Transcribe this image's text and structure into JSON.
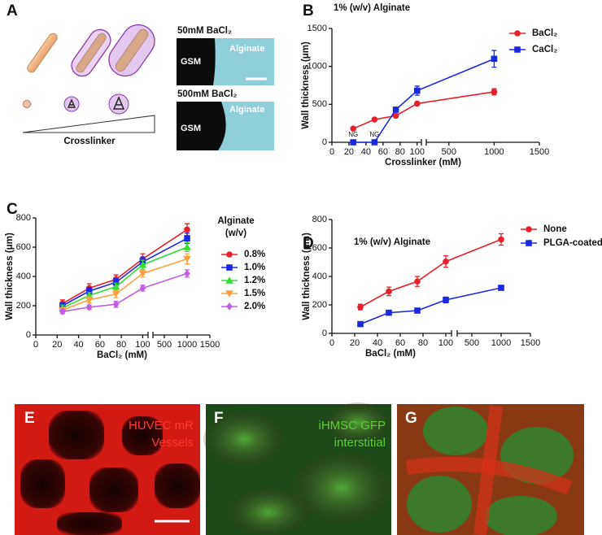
{
  "panels": {
    "A": {
      "label": "A",
      "images": [
        {
          "title": "50mM BaCl₂",
          "left": "GSM",
          "right": "Alginate"
        },
        {
          "title": "500mM BaCl₂",
          "left": "GSM",
          "right": "Alginate"
        }
      ],
      "gradient_label": "Crosslinker"
    },
    "E": {
      "label": "E",
      "text": [
        "HUVEC mR",
        "Vessels"
      ]
    },
    "F": {
      "label": "F",
      "text": [
        "iHMSC GFP",
        "interstitial"
      ]
    },
    "G": {
      "label": "G"
    }
  },
  "chart_data": [
    {
      "type": "line",
      "panel_label": "B",
      "title": "1% (w/v) Alginate",
      "x_label": "Crosslinker (mM)",
      "y_label": "Wall thickness (μm)",
      "x": [
        25,
        50,
        75,
        100,
        1000
      ],
      "xlim": [
        0,
        1500
      ],
      "xbreak": [
        105,
        250
      ],
      "xticks": [
        0,
        20,
        40,
        60,
        80,
        100,
        500,
        1000,
        1500
      ],
      "ylim": [
        0,
        1500
      ],
      "yticks": [
        0,
        500,
        1000,
        1500
      ],
      "series": [
        {
          "name": "BaCl₂",
          "color": "#e8202a",
          "marker": "circle",
          "values": [
            180,
            300,
            350,
            510,
            665
          ],
          "errors": [
            10,
            10,
            15,
            15,
            40
          ]
        },
        {
          "name": "CaCl₂",
          "color": "#1a28e0",
          "marker": "square",
          "values": [
            0,
            0,
            430,
            680,
            1100
          ],
          "errors": [
            0,
            0,
            20,
            60,
            110
          ]
        }
      ],
      "annotations": [
        {
          "text": "NG",
          "x": 25
        },
        {
          "text": "NG",
          "x": 50
        }
      ]
    },
    {
      "type": "line",
      "panel_label": "C",
      "x_label": "BaCl₂ (mM)",
      "y_label": "Wall thickness (μm)",
      "legend_title": [
        "Alginate",
        "(w/v)"
      ],
      "x": [
        25,
        50,
        75,
        100,
        1000
      ],
      "xlim": [
        0,
        1500
      ],
      "xbreak": [
        105,
        250
      ],
      "xticks": [
        0,
        20,
        40,
        60,
        80,
        100,
        500,
        1000,
        1500
      ],
      "ylim": [
        0,
        800
      ],
      "yticks": [
        0,
        200,
        400,
        600,
        800
      ],
      "series": [
        {
          "name": "0.8%",
          "color": "#e8202a",
          "marker": "circle",
          "values": [
            215,
            320,
            380,
            520,
            720
          ],
          "errors": [
            25,
            30,
            30,
            35,
            40
          ]
        },
        {
          "name": "1.0%",
          "color": "#1a28e0",
          "marker": "square",
          "values": [
            200,
            300,
            360,
            500,
            660
          ],
          "errors": [
            20,
            25,
            25,
            30,
            35
          ]
        },
        {
          "name": "1.2%",
          "color": "#33dd33",
          "marker": "triangle",
          "values": [
            185,
            270,
            330,
            480,
            600
          ],
          "errors": [
            20,
            20,
            25,
            30,
            30
          ]
        },
        {
          "name": "1.5%",
          "color": "#ffa040",
          "marker": "triangle-down",
          "values": [
            170,
            240,
            280,
            420,
            520
          ],
          "errors": [
            15,
            20,
            25,
            25,
            35
          ]
        },
        {
          "name": "2.0%",
          "color": "#c060e0",
          "marker": "diamond",
          "values": [
            160,
            190,
            210,
            320,
            420
          ],
          "errors": [
            15,
            15,
            20,
            20,
            25
          ]
        }
      ]
    },
    {
      "type": "line",
      "panel_label": "D",
      "title": "1% (w/v) Alginate",
      "x_label": "BaCl₂ (mM)",
      "y_label": "Wall thickness (μm)",
      "x": [
        25,
        50,
        75,
        100,
        1000
      ],
      "xlim": [
        0,
        1500
      ],
      "xbreak": [
        105,
        250
      ],
      "xticks": [
        0,
        20,
        40,
        60,
        80,
        100,
        500,
        1000,
        1500
      ],
      "ylim": [
        0,
        800
      ],
      "yticks": [
        0,
        200,
        400,
        600,
        800
      ],
      "series": [
        {
          "name": "None",
          "color": "#e8202a",
          "marker": "circle",
          "values": [
            185,
            295,
            365,
            505,
            660
          ],
          "errors": [
            20,
            30,
            35,
            40,
            40
          ]
        },
        {
          "name": "PLGA-coated",
          "color": "#1a28e0",
          "marker": "square",
          "values": [
            65,
            145,
            160,
            235,
            320
          ],
          "errors": [
            10,
            15,
            15,
            20,
            15
          ]
        }
      ]
    }
  ]
}
